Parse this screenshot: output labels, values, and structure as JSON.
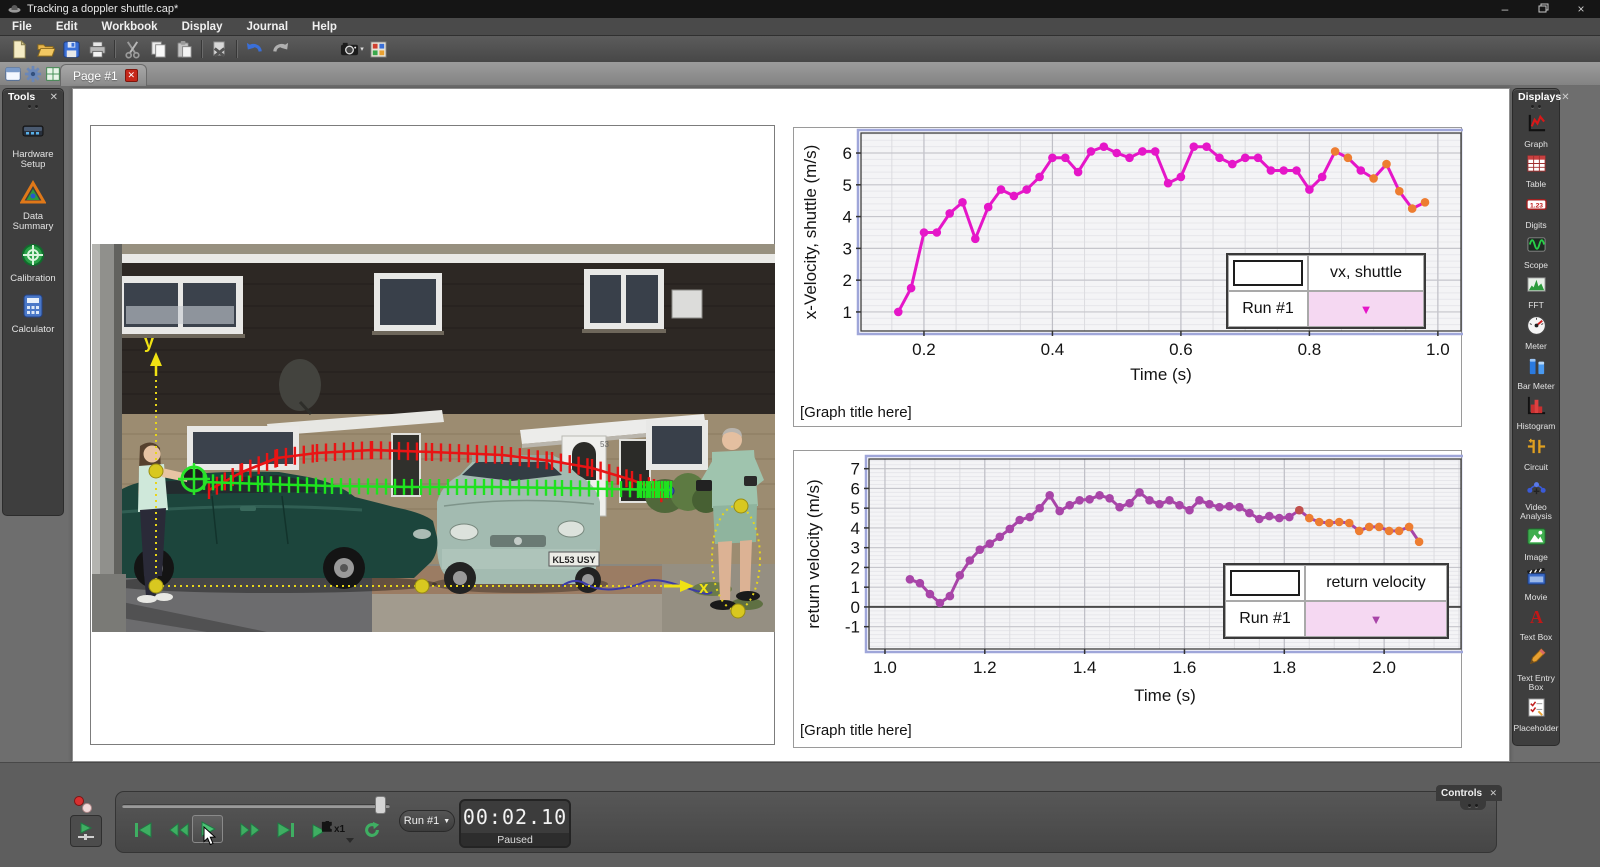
{
  "window": {
    "title": "Tracking a doppler shuttle.cap*"
  },
  "menu": {
    "items": [
      "File",
      "Edit",
      "Workbook",
      "Display",
      "Journal",
      "Help"
    ]
  },
  "toolbar": {
    "buttons": [
      {
        "name": "new-file",
        "icon": "new"
      },
      {
        "name": "open-file",
        "icon": "open"
      },
      {
        "name": "save-file",
        "icon": "save"
      },
      {
        "name": "print",
        "icon": "print"
      },
      {
        "sep": true
      },
      {
        "name": "cut",
        "icon": "cut"
      },
      {
        "name": "copy",
        "icon": "copy"
      },
      {
        "name": "paste",
        "icon": "paste"
      },
      {
        "sep": true
      },
      {
        "name": "delete",
        "icon": "delete"
      },
      {
        "sep": true
      },
      {
        "name": "undo",
        "icon": "undo"
      },
      {
        "name": "redo",
        "icon": "redo"
      },
      {
        "spacer": true
      },
      {
        "name": "snapshot",
        "icon": "camera",
        "caret": true
      },
      {
        "name": "workbook-layout",
        "icon": "mosaic"
      }
    ]
  },
  "tabstrip": {
    "icons": [
      {
        "name": "page-view",
        "icon": "winicon"
      },
      {
        "name": "page-settings",
        "icon": "gear"
      },
      {
        "name": "add-page",
        "icon": "newpage"
      }
    ],
    "tab": {
      "label": "Page #1"
    }
  },
  "tools_panel": {
    "title": "Tools",
    "items": [
      {
        "label": "Hardware Setup",
        "icon": "hardware"
      },
      {
        "label": "Data Summary",
        "icon": "datasummary"
      },
      {
        "label": "Calibration",
        "icon": "calibration"
      },
      {
        "label": "Calculator",
        "icon": "calculator"
      }
    ]
  },
  "displays_panel": {
    "title": "Displays",
    "items": [
      {
        "label": "Graph",
        "icon": "graph"
      },
      {
        "label": "Table",
        "icon": "table"
      },
      {
        "label": "Digits",
        "icon": "digits"
      },
      {
        "label": "Scope",
        "icon": "scope"
      },
      {
        "label": "FFT",
        "icon": "fft"
      },
      {
        "label": "Meter",
        "icon": "meter"
      },
      {
        "label": "Bar Meter",
        "icon": "barmeter"
      },
      {
        "label": "Histogram",
        "icon": "histogram"
      },
      {
        "label": "Circuit",
        "icon": "circuit"
      },
      {
        "label": "Video Analysis",
        "icon": "video"
      },
      {
        "label": "Image",
        "icon": "image"
      },
      {
        "label": "Movie",
        "icon": "movie"
      },
      {
        "label": "Text Box",
        "icon": "textbox"
      },
      {
        "label": "Text Entry Box",
        "icon": "textentry"
      },
      {
        "label": "Placeholder",
        "icon": "placeholder"
      }
    ]
  },
  "video": {
    "y_axis_label": "y",
    "x_axis_label": "x",
    "license_plate": "KL53 USY",
    "house_number": "53"
  },
  "chart_data": [
    {
      "type": "line",
      "title": "[Graph title here]",
      "xlabel": "Time (s)",
      "ylabel": "x-Velocity, shuttle (m/s)",
      "series_name": "vx, shuttle",
      "run_label": "Run #1",
      "line_color": "#e516c8",
      "highlight_color": "#ed7d31",
      "xlim": [
        0.102,
        1.036
      ],
      "ylim": [
        0.4,
        6.63
      ],
      "xticks": [
        0.2,
        0.4,
        0.6,
        0.8,
        1.0
      ],
      "yticks": [
        1,
        2,
        3,
        4,
        5,
        6
      ],
      "x_minor_step": 0.05,
      "y_minor_step": 0.2,
      "zero_line": false,
      "grid": true,
      "legend_position": "bottom-right",
      "x": [
        0.16,
        0.18,
        0.2,
        0.22,
        0.24,
        0.26,
        0.28,
        0.3,
        0.32,
        0.34,
        0.36,
        0.38,
        0.4,
        0.42,
        0.44,
        0.46,
        0.48,
        0.5,
        0.52,
        0.54,
        0.56,
        0.58,
        0.6,
        0.62,
        0.64,
        0.66,
        0.68,
        0.7,
        0.72,
        0.74,
        0.76,
        0.78,
        0.8,
        0.82,
        0.84,
        0.86,
        0.88,
        0.9,
        0.92,
        0.94,
        0.96,
        0.98
      ],
      "values": [
        1.0,
        1.75,
        3.5,
        3.5,
        4.1,
        4.45,
        3.3,
        4.3,
        4.85,
        4.65,
        4.85,
        5.25,
        5.85,
        5.85,
        5.4,
        6.05,
        6.2,
        6.0,
        5.85,
        6.05,
        6.05,
        5.05,
        5.25,
        6.2,
        6.2,
        5.85,
        5.65,
        5.85,
        5.85,
        5.45,
        5.45,
        5.45,
        4.85,
        5.25,
        6.05,
        5.85,
        5.45,
        5.2,
        5.65,
        4.8,
        4.25,
        4.45
      ],
      "point_overrides": {
        "34": "#ed7d31",
        "35": "#ed7d31",
        "37": "#ed7d31",
        "38": "#ed7d31",
        "39": "#ed7d31",
        "40": "#ed7d31",
        "41": "#ed7d31"
      }
    },
    {
      "type": "line",
      "title": "[Graph title here]",
      "xlabel": "Time (s)",
      "ylabel": "return velocity (m/s)",
      "series_name": "return velocity",
      "run_label": "Run #1",
      "line_color": "#a845a8",
      "highlight_color": "#ed7d31",
      "xlim": [
        0.968,
        2.154
      ],
      "ylim": [
        -2.13,
        7.49
      ],
      "xticks": [
        1.0,
        1.2,
        1.4,
        1.6,
        1.8,
        2.0
      ],
      "yticks": [
        -1,
        0,
        1,
        2,
        3,
        4,
        5,
        6,
        7
      ],
      "x_minor_step": 0.05,
      "y_minor_step": 0.2,
      "zero_line": true,
      "grid": true,
      "legend_position": "bottom-right",
      "x": [
        1.05,
        1.07,
        1.09,
        1.11,
        1.13,
        1.15,
        1.17,
        1.19,
        1.21,
        1.23,
        1.25,
        1.27,
        1.29,
        1.31,
        1.33,
        1.35,
        1.37,
        1.39,
        1.41,
        1.43,
        1.45,
        1.47,
        1.49,
        1.51,
        1.53,
        1.55,
        1.57,
        1.59,
        1.61,
        1.63,
        1.65,
        1.67,
        1.69,
        1.71,
        1.73,
        1.75,
        1.77,
        1.79,
        1.81,
        1.83,
        1.85,
        1.87,
        1.89,
        1.91,
        1.93,
        1.95,
        1.97,
        1.99,
        2.01,
        2.03,
        2.05,
        2.07
      ],
      "values": [
        1.4,
        1.2,
        0.65,
        0.2,
        0.55,
        1.6,
        2.35,
        2.9,
        3.2,
        3.55,
        3.95,
        4.4,
        4.55,
        5.0,
        5.65,
        4.85,
        5.15,
        5.4,
        5.45,
        5.65,
        5.5,
        5.05,
        5.25,
        5.8,
        5.4,
        5.2,
        5.4,
        5.15,
        4.9,
        5.4,
        5.2,
        5.05,
        5.1,
        5.05,
        4.75,
        4.45,
        4.6,
        4.5,
        4.55,
        4.9,
        4.5,
        4.3,
        4.25,
        4.3,
        4.25,
        3.85,
        4.05,
        4.05,
        3.85,
        3.85,
        4.05,
        3.3
      ],
      "point_overrides": {
        "39": "#c0504d",
        "40": "#ed7d31",
        "41": "#ed7d31",
        "42": "#ed7d31",
        "43": "#ed7d31",
        "44": "#ed7d31",
        "45": "#ed7d31",
        "46": "#ed7d31",
        "47": "#ed7d31",
        "48": "#ed7d31",
        "49": "#ed7d31",
        "50": "#ed7d31",
        "51": "#ed7d31"
      }
    }
  ],
  "controls": {
    "panel_title": "Controls",
    "run_selector": "Run #1",
    "time": "00:02.10",
    "status": "Paused",
    "speed": "x1"
  }
}
